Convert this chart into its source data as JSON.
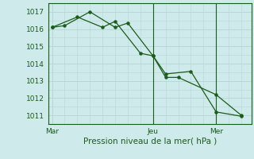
{
  "xlabel": "Pression niveau de la mer( hPa )",
  "bg_color": "#ceeaea",
  "grid_color": "#b8d8d8",
  "line_color": "#1a5c1a",
  "marker_color": "#1a5c1a",
  "ylim": [
    1010.5,
    1017.5
  ],
  "yticks": [
    1011,
    1012,
    1013,
    1014,
    1015,
    1016,
    1017
  ],
  "xtick_labels": [
    "Mar",
    "Jeu",
    "Mer"
  ],
  "xtick_positions": [
    0,
    8,
    13
  ],
  "vline_positions": [
    8,
    13
  ],
  "series1_x": [
    0,
    1,
    3,
    5,
    6,
    8,
    9,
    10,
    13,
    15
  ],
  "series1_y": [
    1016.1,
    1016.2,
    1017.0,
    1016.1,
    1016.35,
    1014.45,
    1013.2,
    1013.2,
    1012.2,
    1011.0
  ],
  "series2_x": [
    0,
    2,
    4,
    5,
    7,
    8,
    9,
    11,
    13,
    15
  ],
  "series2_y": [
    1016.1,
    1016.7,
    1016.1,
    1016.45,
    1014.6,
    1014.45,
    1013.4,
    1013.55,
    1011.2,
    1010.95
  ],
  "xlim": [
    -0.3,
    15.8
  ]
}
